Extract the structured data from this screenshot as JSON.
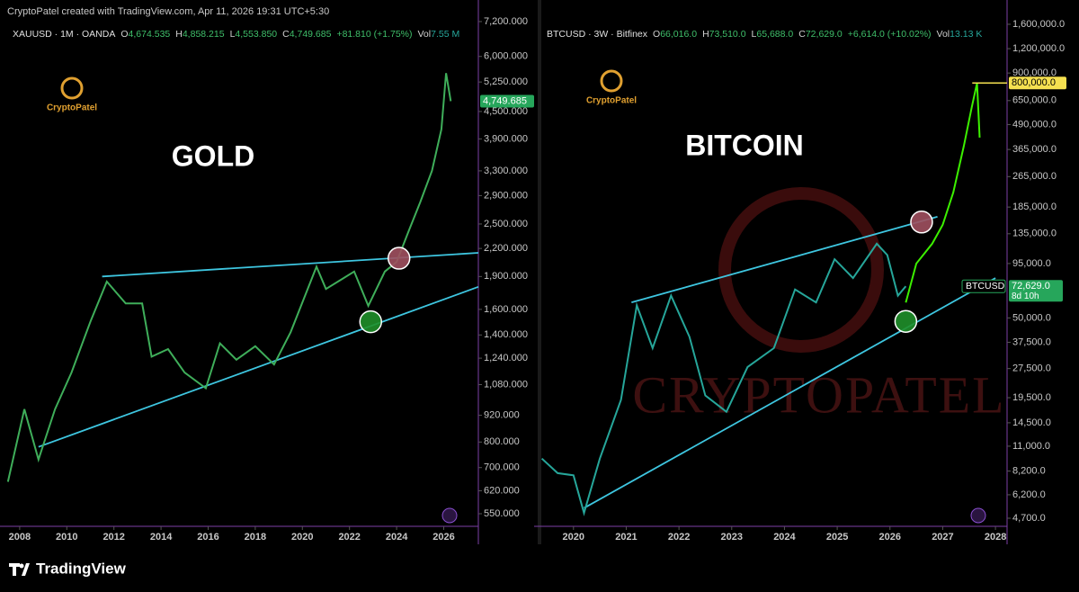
{
  "header": "CryptoPatel created with TradingView.com, Apr 11, 2026 19:31 UTC+5:30",
  "footer_brand": "TradingView",
  "chart_data": [
    {
      "type": "line",
      "title": "GOLD",
      "logo": "CryptoPatel",
      "log_scale": true,
      "legend": {
        "symbol": "XAUUSD · 1M · OANDA",
        "items": [
          {
            "key": "O",
            "value": "4,674.535"
          },
          {
            "key": "H",
            "value": "4,858.215"
          },
          {
            "key": "L",
            "value": "4,553.850"
          },
          {
            "key": "C",
            "value": "4,749.685"
          },
          {
            "key": "",
            "value": "+81.810 (+1.75%)"
          },
          {
            "key": "Vol",
            "value": "7.55 M"
          }
        ]
      },
      "xlim": [
        2007.47,
        2027.47
      ],
      "xticks": [
        2008,
        2010,
        2012,
        2014,
        2016,
        2018,
        2020,
        2022,
        2024,
        2026
      ],
      "ylim": [
        515,
        7510
      ],
      "yticks": [
        {
          "value": 7200,
          "label": "7,200.000"
        },
        {
          "value": 6000,
          "label": "6,000.000"
        },
        {
          "value": 5250,
          "label": "5,250.000"
        },
        {
          "value": 4500,
          "label": "4,500.000"
        },
        {
          "value": 3900,
          "label": "3,900.000"
        },
        {
          "value": 3300,
          "label": "3,300.000"
        },
        {
          "value": 2900,
          "label": "2,900.000"
        },
        {
          "value": 2500,
          "label": "2,500.000"
        },
        {
          "value": 2200,
          "label": "2,200.000"
        },
        {
          "value": 1900,
          "label": "1,900.000"
        },
        {
          "value": 1600,
          "label": "1,600.000"
        },
        {
          "value": 1400,
          "label": "1,400.000"
        },
        {
          "value": 1240,
          "label": "1,240.000"
        },
        {
          "value": 1080,
          "label": "1,080.000"
        },
        {
          "value": 920,
          "label": "920.000"
        },
        {
          "value": 800,
          "label": "800.000"
        },
        {
          "value": 700,
          "label": "700.000"
        },
        {
          "value": 620,
          "label": "620.000"
        },
        {
          "value": 550,
          "label": "550.000"
        }
      ],
      "series": [
        {
          "color": "#3fae5a",
          "x": [
            2007.5,
            2008.2,
            2008.8,
            2009.5,
            2010.2,
            2011,
            2011.7,
            2012.5,
            2013.2,
            2013.6,
            2014.3,
            2015,
            2015.9,
            2016.5,
            2017.2,
            2018,
            2018.8,
            2019.5,
            2020.6,
            2021,
            2022.2,
            2022.8,
            2023.5,
            2024,
            2024.5,
            2025,
            2025.5,
            2025.9,
            2026.1,
            2026.3
          ],
          "values": [
            650,
            950,
            730,
            950,
            1150,
            1500,
            1850,
            1650,
            1650,
            1250,
            1300,
            1150,
            1060,
            1340,
            1230,
            1320,
            1200,
            1420,
            2000,
            1780,
            1950,
            1630,
            1950,
            2050,
            2400,
            2800,
            3300,
            4100,
            5500,
            4750
          ]
        }
      ],
      "trendlines": [
        {
          "color": "#3ec6e0",
          "x": [
            2011.5,
            2027.47
          ],
          "y": [
            1900,
            2150
          ]
        },
        {
          "color": "#3ec6e0",
          "x": [
            2008.8,
            2027.47
          ],
          "y": [
            780,
            1800
          ]
        }
      ],
      "circles": [
        {
          "color": "#a0505f",
          "x": 2024.1,
          "y": 2090
        },
        {
          "color": "#1f8f2a",
          "x": 2022.9,
          "y": 1500
        }
      ],
      "last_price": {
        "value": 4749.685,
        "label": "4,749.685",
        "color": "#26a65b"
      }
    },
    {
      "type": "line",
      "title": "BITCOIN",
      "logo": "CryptoPatel",
      "watermark": "CRYPTOPATEL",
      "log_scale": true,
      "legend": {
        "symbol": "BTCUSD · 3W · Bitfinex",
        "items": [
          {
            "key": "O",
            "value": "66,016.0"
          },
          {
            "key": "H",
            "value": "73,510.0"
          },
          {
            "key": "L",
            "value": "65,688.0"
          },
          {
            "key": "C",
            "value": "72,629.0"
          },
          {
            "key": "",
            "value": "+6,614.0 (+10.02%)"
          },
          {
            "key": "Vol",
            "value": "13.13 K"
          }
        ]
      },
      "xlim": [
        2019.39,
        2028.22
      ],
      "xticks": [
        2020,
        2021,
        2022,
        2023,
        2024,
        2025,
        2026,
        2027,
        2028
      ],
      "ylim": [
        4272,
        1817000
      ],
      "yticks": [
        {
          "value": 1600000,
          "label": "1,600,000.0"
        },
        {
          "value": 1200000,
          "label": "1,200,000.0"
        },
        {
          "value": 900000,
          "label": "900,000.0"
        },
        {
          "value": 650000,
          "label": "650,000.0"
        },
        {
          "value": 490000,
          "label": "490,000.0"
        },
        {
          "value": 365000,
          "label": "365,000.0"
        },
        {
          "value": 265000,
          "label": "265,000.0"
        },
        {
          "value": 185000,
          "label": "185,000.0"
        },
        {
          "value": 135000,
          "label": "135,000.0"
        },
        {
          "value": 95000,
          "label": "95,000.0"
        },
        {
          "value": 50000,
          "label": "50,000.0"
        },
        {
          "value": 37500,
          "label": "37,500.0"
        },
        {
          "value": 27500,
          "label": "27,500.0"
        },
        {
          "value": 19500,
          "label": "19,500.0"
        },
        {
          "value": 14500,
          "label": "14,500.0"
        },
        {
          "value": 11000,
          "label": "11,000.0"
        },
        {
          "value": 8200,
          "label": "8,200.0"
        },
        {
          "value": 6200,
          "label": "6,200.0"
        },
        {
          "value": 4700,
          "label": "4,700.0"
        }
      ],
      "series": [
        {
          "color": "#26a69a",
          "x": [
            2019.4,
            2019.7,
            2020.0,
            2020.2,
            2020.5,
            2020.9,
            2021.2,
            2021.5,
            2021.85,
            2022.2,
            2022.5,
            2022.9,
            2023.3,
            2023.8,
            2024.2,
            2024.6,
            2024.95,
            2025.3,
            2025.75,
            2025.95,
            2026.15,
            2026.3
          ],
          "values": [
            9500,
            8000,
            7800,
            5000,
            9500,
            19000,
            58000,
            35000,
            65000,
            40000,
            20000,
            16500,
            28000,
            35000,
            70000,
            60000,
            100000,
            80000,
            120000,
            105000,
            65000,
            72629
          ]
        },
        {
          "color": "#3cf000",
          "x": [
            2026.3,
            2026.5,
            2026.8,
            2027.0,
            2027.2,
            2027.4,
            2027.55,
            2027.65,
            2027.7
          ],
          "values": [
            60000,
            95000,
            120000,
            150000,
            220000,
            380000,
            600000,
            800000,
            420000
          ]
        }
      ],
      "trendlines": [
        {
          "color": "#3ec6e0",
          "x": [
            2021.1,
            2026.9
          ],
          "y": [
            60000,
            165000
          ]
        },
        {
          "color": "#3ec6e0",
          "x": [
            2020.2,
            2028.0
          ],
          "y": [
            5300,
            80000
          ]
        }
      ],
      "circles": [
        {
          "color": "#a0505f",
          "x": 2026.6,
          "y": 155000
        },
        {
          "color": "#1f8f2a",
          "x": 2026.3,
          "y": 48000
        }
      ],
      "target": {
        "value": 800000,
        "label": "800,000.0",
        "x": 2027.56,
        "color": "#f5e050"
      },
      "last_price": {
        "value": 72629,
        "label": "72,629.0",
        "countdown": "8d 10h",
        "symbol_tag": "BTCUSD",
        "color": "#26a65b"
      }
    }
  ]
}
